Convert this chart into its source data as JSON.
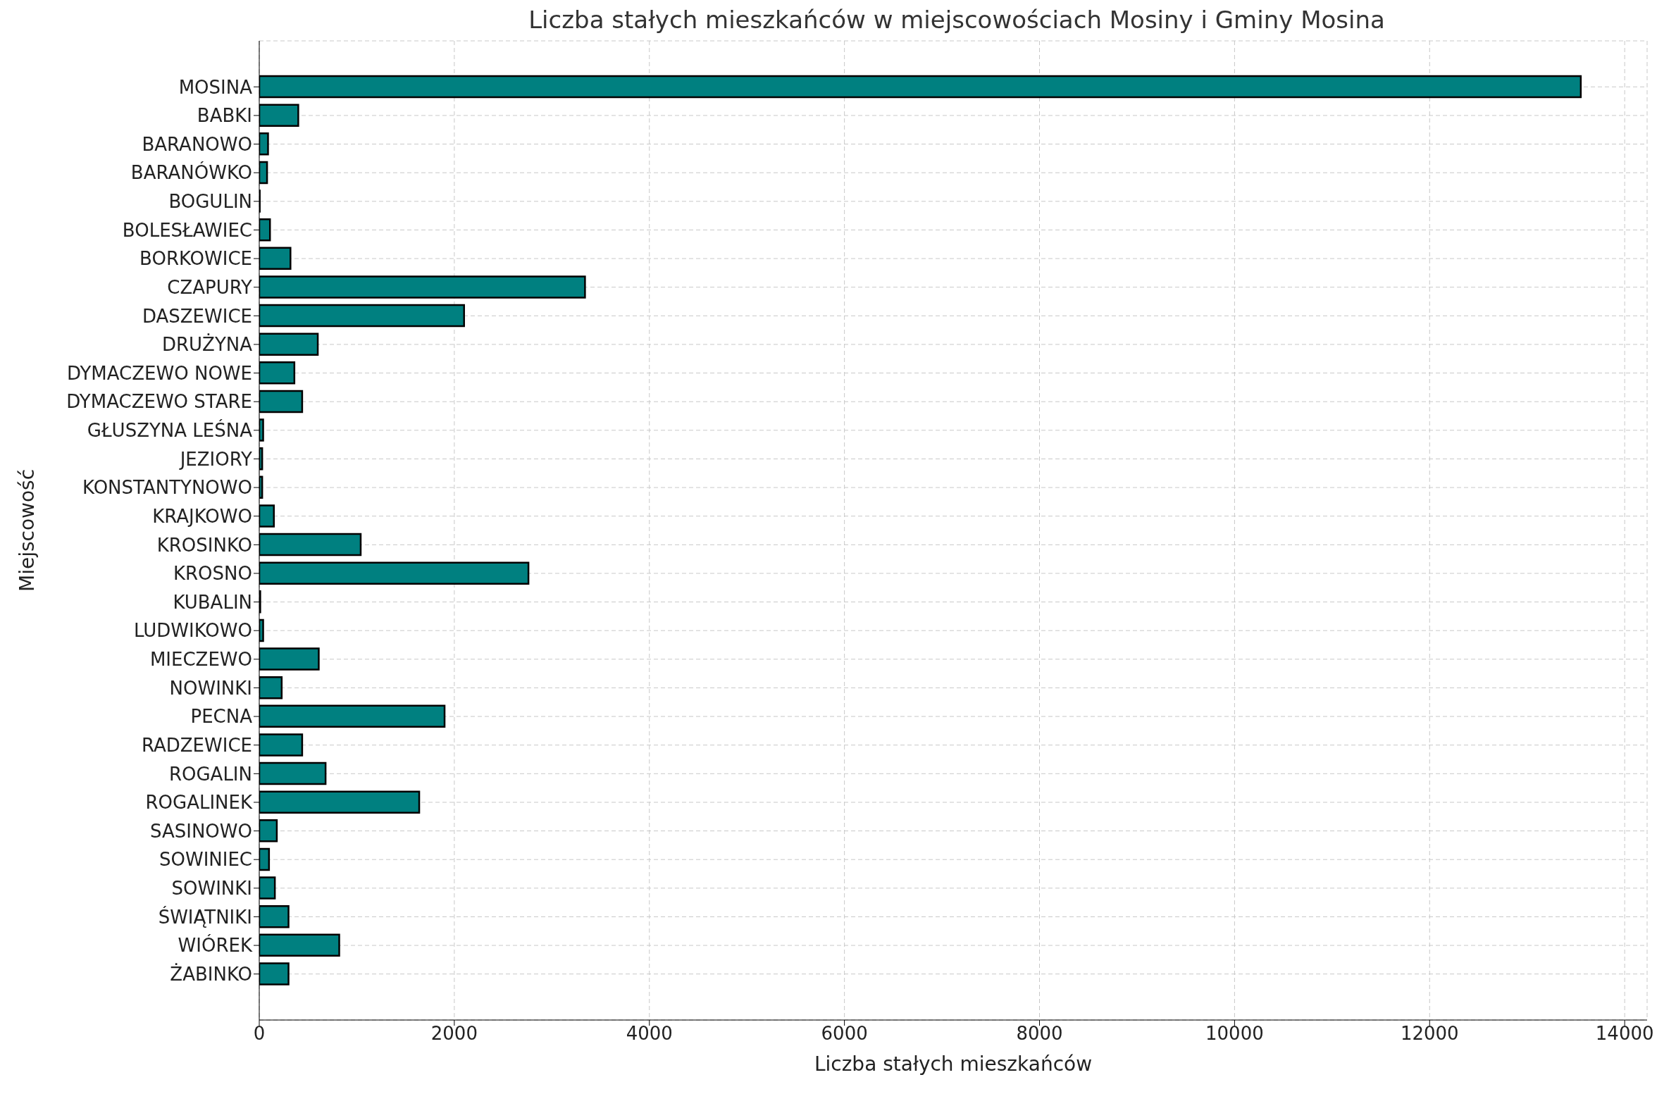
{
  "chart_data": {
    "type": "bar",
    "orientation": "horizontal",
    "title": "Liczba stałych mieszkańców w miejscowościach Mosiny i Gminy Mosina",
    "xlabel": "Liczba stałych mieszkańców",
    "ylabel": "Miejscowość",
    "categories": [
      "MOSINA",
      "BABKI",
      "BARANOWO",
      "BARANÓWKO",
      "BOGULIN",
      "BOLESŁAWIEC",
      "BORKOWICE",
      "CZAPURY",
      "DASZEWICE",
      "DRUŻYNA",
      "DYMACZEWO NOWE",
      "DYMACZEWO STARE",
      "GŁUSZYNA LEŚNA",
      "JEZIORY",
      "KONSTANTYNOWO",
      "KRAJKOWO",
      "KROSINKO",
      "KROSNO",
      "KUBALIN",
      "LUDWIKOWO",
      "MIECZEWO",
      "NOWINKI",
      "PECNA",
      "RADZEWICE",
      "ROGALIN",
      "ROGALINEK",
      "SASINOWO",
      "SOWINIEC",
      "SOWINKI",
      "ŚWIĄTNIKI",
      "WIÓREK",
      "ŻABINKO"
    ],
    "values": [
      13550,
      400,
      90,
      80,
      5,
      110,
      320,
      3340,
      2100,
      600,
      360,
      440,
      40,
      30,
      30,
      150,
      1040,
      2760,
      10,
      40,
      610,
      230,
      1900,
      440,
      680,
      1640,
      180,
      100,
      160,
      300,
      820,
      300
    ],
    "color": "#008080",
    "xlim": [
      0,
      14230
    ],
    "xticks": [
      0,
      2000,
      4000,
      6000,
      8000,
      10000,
      12000,
      14000
    ],
    "grid": true
  }
}
